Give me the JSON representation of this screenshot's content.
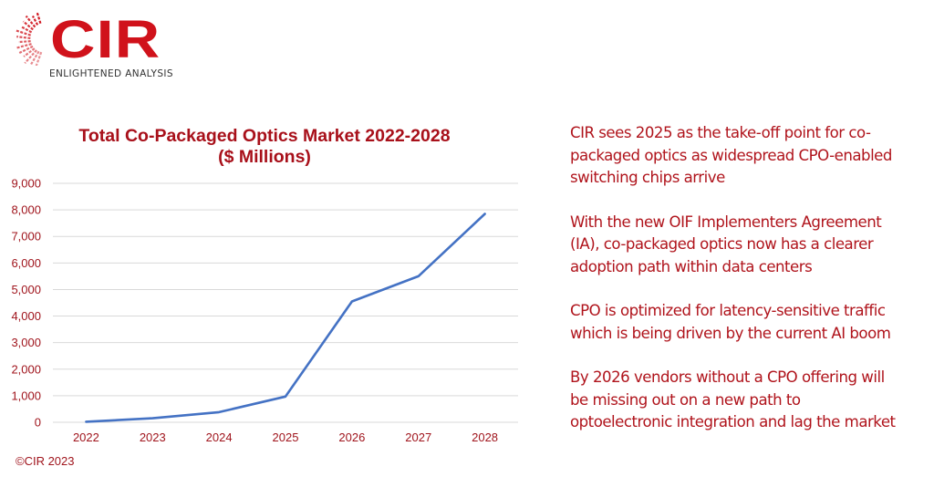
{
  "logo": {
    "name": "CIR",
    "tagline": "ENLIGHTENED ANALYSIS",
    "brand_color": "#d0121b"
  },
  "chart_data": {
    "type": "line",
    "title": "Total Co-Packaged Optics Market 2022-2028",
    "subtitle": "($ Millions)",
    "xlabel": "",
    "ylabel": "",
    "categories": [
      "2022",
      "2023",
      "2024",
      "2025",
      "2026",
      "2027",
      "2028"
    ],
    "series": [
      {
        "name": "Total Co-Packaged Optics Market",
        "values": [
          20,
          150,
          380,
          970,
          4550,
          5500,
          7850
        ],
        "color": "#4472c4"
      }
    ],
    "ylim": [
      0,
      9000
    ],
    "yticks": [
      0,
      1000,
      2000,
      3000,
      4000,
      5000,
      6000,
      7000,
      8000,
      9000
    ],
    "ytick_labels": [
      "0",
      "1,000",
      "2,000",
      "3,000",
      "4,000",
      "5,000",
      "6,000",
      "7,000",
      "8,000",
      "9,000"
    ],
    "grid": true,
    "legend": "none"
  },
  "copyright": "©CIR 2023",
  "notes": [
    "CIR sees 2025 as the take-off point for co-\npackaged optics as widespread  CPO-enabled\nswitching chips arrive",
    "With the new OIF Implementers Agreement\n(IA), co-packaged optics now has a clearer\nadoption path within data centers",
    "CPO is optimized for latency-sensitive traffic\nwhich is being driven by the current AI boom",
    "By 2026 vendors without a CPO offering will\nbe missing out on a new path to\noptoelectronic integration and lag the market"
  ],
  "colors": {
    "text_red": "#b0141c",
    "title_red": "#a8101a",
    "line_blue": "#4472c4",
    "grid": "#d9d9d9"
  }
}
